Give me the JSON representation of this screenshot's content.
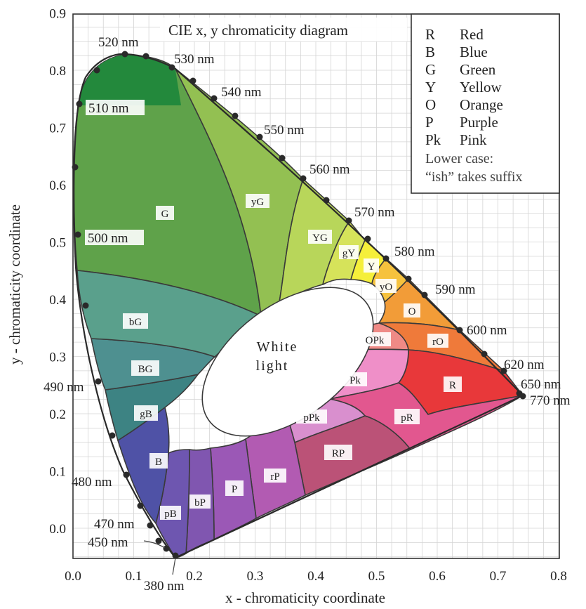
{
  "title": "CIE x, y chromaticity diagram",
  "axes": {
    "xlabel": "x - chromaticity coordinate",
    "ylabel": "y - chromaticity coordinate",
    "xticks": [
      "0.0",
      "0.1",
      "0.2",
      "0.3",
      "0.4",
      "0.5",
      "0.6",
      "0.7",
      "0.8"
    ],
    "yticks": [
      "0.0",
      "0.1",
      "0.2",
      "0.3",
      "0.4",
      "0.5",
      "0.6",
      "0.7",
      "0.8",
      "0.9"
    ]
  },
  "legend": {
    "entries": [
      {
        "code": "R",
        "name": "Red"
      },
      {
        "code": "B",
        "name": "Blue"
      },
      {
        "code": "G",
        "name": "Green"
      },
      {
        "code": "Y",
        "name": "Yellow"
      },
      {
        "code": "O",
        "name": "Orange"
      },
      {
        "code": "P",
        "name": "Purple"
      },
      {
        "code": "Pk",
        "name": "Pink"
      }
    ],
    "note_line1": "Lower case:",
    "note_line2": "“ish” takes suffix"
  },
  "wavelength_labels": {
    "nm380": "380 nm",
    "nm450": "450 nm",
    "nm470": "470 nm",
    "nm480": "480 nm",
    "nm490": "490 nm",
    "nm500": "500 nm",
    "nm510": "510 nm",
    "nm520": "520 nm",
    "nm530": "530 nm",
    "nm540": "540 nm",
    "nm550": "550 nm",
    "nm560": "560 nm",
    "nm570": "570 nm",
    "nm580": "580 nm",
    "nm590": "590 nm",
    "nm600": "600 nm",
    "nm620": "620 nm",
    "nm650": "650 nm",
    "nm770": "770 nm"
  },
  "regions": {
    "G": "G",
    "yG": "yG",
    "YG": "YG",
    "gY": "gY",
    "Y": "Y",
    "yO": "yO",
    "O": "O",
    "rO": "rO",
    "R": "R",
    "OPk": "OPk",
    "Pk": "Pk",
    "pR": "pR",
    "pPk": "pPk",
    "RP": "RP",
    "rP": "rP",
    "P": "P",
    "bP": "bP",
    "pB": "pB",
    "B": "B",
    "gB": "gB",
    "BG": "BG",
    "bG": "bG"
  },
  "white_light": {
    "line1": "White",
    "line2": "light"
  },
  "colors": {
    "G": "#5fa24a",
    "G_top": "#1f8a3a",
    "yG": "#93c052",
    "YG": "#b8d65a",
    "gY": "#d6e35a",
    "Y": "#f5ef3a",
    "yO": "#f6c23d",
    "O": "#f29c38",
    "rO": "#ef7a3a",
    "R": "#e8383a",
    "OPk": "#ef8a86",
    "Pk": "#ef8fc8",
    "pR": "#e2578f",
    "pPk": "#d98fce",
    "RP": "#bb5277",
    "rP": "#b25bb2",
    "P": "#9b58b6",
    "bP": "#8056b0",
    "pB": "#6e56b0",
    "B": "#4f52a6",
    "gB": "#3d8383",
    "BG": "#4e9090",
    "bG": "#5aa08c"
  }
}
